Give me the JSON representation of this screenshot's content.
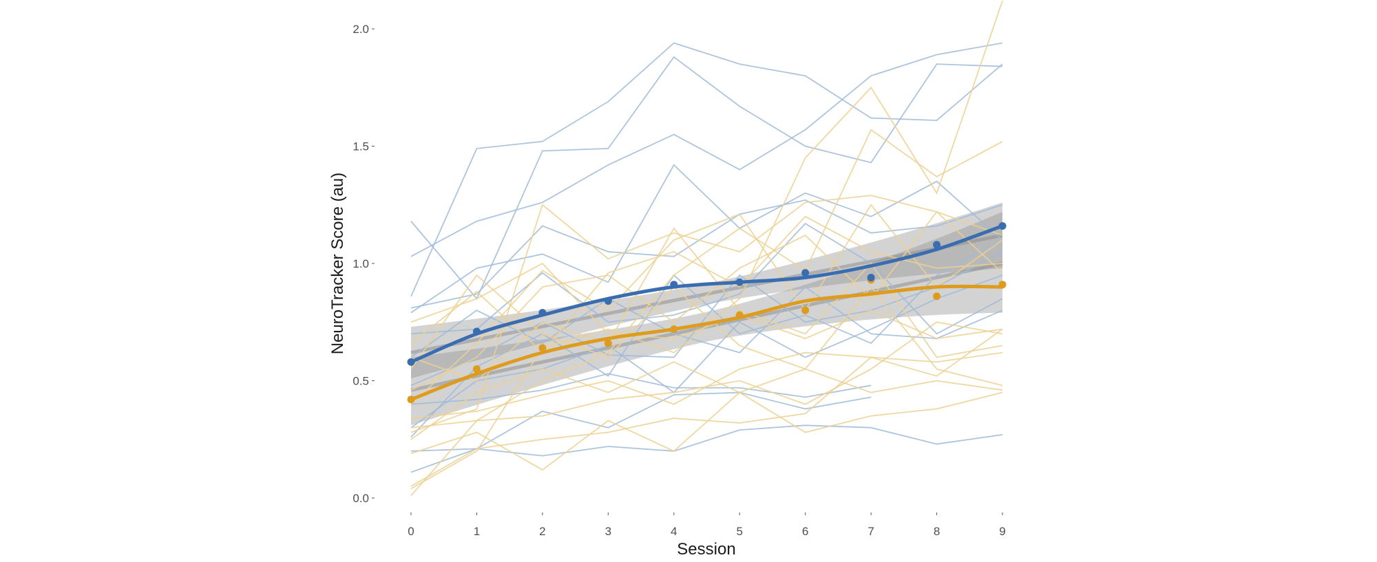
{
  "chart_data": {
    "type": "line",
    "title": "",
    "xlabel": "Session",
    "ylabel": "NeuroTracker Score (au)",
    "xlim": [
      0,
      9
    ],
    "ylim": [
      0,
      2.1
    ],
    "x_ticks": [
      "0",
      "1",
      "2",
      "3",
      "4",
      "5",
      "6",
      "7",
      "8",
      "9"
    ],
    "y_ticks": [
      "0.0",
      "0.5",
      "1.0",
      "1.5",
      "2.0"
    ],
    "grid": false,
    "legend": "none",
    "colors": {
      "blue": "#3a6db0",
      "blue_light": "#9fbad8",
      "orange": "#de9c1e",
      "orange_light": "#ecd091",
      "ribbon": "#8c8c8c"
    },
    "x": [
      0,
      1,
      2,
      3,
      4,
      5,
      6,
      7,
      8,
      9
    ],
    "mean_points": [
      {
        "color": "blue",
        "values": [
          0.58,
          0.71,
          0.79,
          0.84,
          0.91,
          0.92,
          0.96,
          0.94,
          1.08,
          1.16
        ]
      },
      {
        "color": "orange",
        "values": [
          0.42,
          0.55,
          0.64,
          0.66,
          0.72,
          0.78,
          0.8,
          0.93,
          0.86,
          0.91
        ]
      }
    ],
    "smooth_lines": [
      {
        "color": "blue",
        "values": [
          0.58,
          0.7,
          0.78,
          0.85,
          0.9,
          0.92,
          0.94,
          0.99,
          1.06,
          1.16
        ]
      },
      {
        "color": "orange",
        "values": [
          0.42,
          0.53,
          0.62,
          0.68,
          0.72,
          0.77,
          0.84,
          0.87,
          0.9,
          0.9
        ]
      }
    ],
    "linear_fit_ribbons": [
      {
        "fit": [
          0.62,
          1.12
        ],
        "lower": [
          0.51,
          0.98
        ],
        "upper": [
          0.73,
          1.26
        ]
      },
      {
        "fit": [
          0.46,
          1.0
        ],
        "lower": [
          0.31,
          0.79
        ],
        "upper": [
          0.6,
          1.22
        ]
      }
    ],
    "individual_series": [
      {
        "color": "blue",
        "values": [
          0.86,
          1.49,
          1.52,
          1.69,
          1.94,
          1.85,
          1.8,
          1.62,
          1.61,
          1.85
        ]
      },
      {
        "color": "blue",
        "values": [
          1.03,
          1.18,
          1.26,
          1.42,
          1.55,
          1.4,
          1.57,
          1.8,
          1.89,
          1.94
        ]
      },
      {
        "color": "blue",
        "values": [
          1.18,
          0.85,
          1.48,
          1.49,
          1.88,
          1.67,
          1.5,
          1.43,
          1.85,
          1.84
        ]
      },
      {
        "color": "blue",
        "values": [
          0.79,
          0.98,
          1.04,
          0.92,
          1.42,
          1.15,
          1.3,
          1.2,
          1.35,
          1.1
        ]
      },
      {
        "color": "blue",
        "values": [
          0.81,
          0.87,
          1.16,
          1.05,
          1.03,
          1.21,
          1.27,
          1.13,
          1.16,
          1.25
        ]
      },
      {
        "color": "blue",
        "values": [
          0.7,
          0.72,
          0.96,
          0.75,
          0.78,
          0.87,
          1.17,
          1.0,
          0.7,
          0.85
        ]
      },
      {
        "color": "blue",
        "values": [
          0.48,
          0.6,
          0.75,
          0.61,
          0.6,
          0.95,
          0.75,
          0.8,
          0.9,
          1.05
        ]
      },
      {
        "color": "blue",
        "values": [
          0.3,
          0.5,
          0.55,
          0.65,
          0.45,
          0.75,
          0.6,
          0.72,
          0.85,
          0.95
        ]
      },
      {
        "color": "blue",
        "values": [
          0.4,
          0.42,
          0.46,
          0.53,
          0.47,
          0.47,
          0.43,
          0.48
        ]
      },
      {
        "color": "blue",
        "values": [
          0.2,
          0.21,
          0.18,
          0.22,
          0.2,
          0.29,
          0.31,
          0.3,
          0.23,
          0.27
        ]
      },
      {
        "color": "blue",
        "values": [
          0.11,
          0.21,
          0.37,
          0.3,
          0.44,
          0.45,
          0.38,
          0.43
        ]
      },
      {
        "color": "blue",
        "values": [
          0.6,
          0.8,
          0.66,
          0.85,
          0.7,
          0.62,
          0.9,
          0.7,
          0.68,
          0.8
        ]
      },
      {
        "color": "blue",
        "values": [
          0.26,
          0.56,
          0.7,
          0.52,
          0.95,
          0.7,
          0.78,
          0.66,
          0.95,
          1.1
        ]
      },
      {
        "color": "orange",
        "values": [
          0.04,
          0.2,
          0.64,
          0.72,
          0.62,
          0.85,
          1.45,
          1.75,
          1.3,
          2.12
        ]
      },
      {
        "color": "orange",
        "values": [
          0.01,
          0.33,
          0.5,
          0.62,
          0.95,
          1.15,
          0.97,
          1.57,
          1.37,
          1.52
        ]
      },
      {
        "color": "orange",
        "values": [
          0.28,
          0.38,
          1.25,
          1.02,
          1.13,
          1.05,
          1.26,
          1.29,
          1.22,
          1.12
        ]
      },
      {
        "color": "orange",
        "values": [
          0.4,
          0.66,
          0.97,
          0.8,
          1.1,
          1.21,
          0.8,
          1.25,
          0.9,
          1.1
        ]
      },
      {
        "color": "orange",
        "values": [
          0.19,
          0.28,
          0.12,
          0.33,
          0.2,
          0.45,
          0.28,
          0.35,
          0.38,
          0.45
        ]
      },
      {
        "color": "orange",
        "values": [
          0.05,
          0.21,
          0.25,
          0.28,
          0.34,
          0.32,
          0.36,
          0.6,
          0.52,
          0.72
        ]
      },
      {
        "color": "orange",
        "values": [
          0.34,
          0.37,
          0.44,
          0.5,
          0.4,
          0.55,
          0.62,
          0.6,
          0.58,
          0.62
        ]
      },
      {
        "color": "orange",
        "values": [
          0.55,
          0.95,
          0.7,
          0.6,
          0.9,
          0.65,
          0.55,
          0.9,
          0.55,
          0.48
        ]
      },
      {
        "color": "orange",
        "values": [
          0.46,
          0.6,
          0.9,
          0.95,
          0.75,
          0.98,
          1.12,
          0.85,
          1.22,
          0.96
        ]
      },
      {
        "color": "orange",
        "values": [
          0.6,
          0.5,
          0.75,
          0.66,
          1.15,
          0.8,
          0.7,
          1.0,
          0.6,
          0.65
        ]
      },
      {
        "color": "orange",
        "values": [
          0.3,
          0.33,
          0.35,
          0.42,
          0.45,
          0.5,
          0.4,
          0.55,
          0.75,
          0.7
        ]
      },
      {
        "color": "orange",
        "values": [
          0.66,
          0.88,
          0.62,
          0.96,
          1.05,
          0.9,
          1.2,
          1.05,
          0.98,
          1.0
        ]
      },
      {
        "color": "orange",
        "values": [
          0.25,
          0.45,
          0.55,
          0.45,
          0.58,
          0.45,
          0.55,
          0.45,
          0.5,
          0.46
        ]
      },
      {
        "color": "orange",
        "values": [
          0.75,
          0.85,
          1.0,
          0.7,
          0.68,
          0.78,
          0.68,
          0.8,
          0.68,
          0.72
        ]
      }
    ]
  }
}
